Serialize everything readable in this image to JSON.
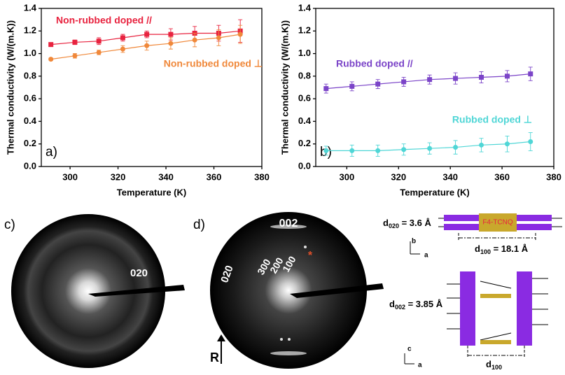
{
  "chart_data": [
    {
      "type": "scatter-line",
      "annotation": "a)",
      "xlabel": "Temperature (K)",
      "ylabel": "Thermal conductivity (W/(m.K))",
      "x": [
        292,
        302,
        312,
        322,
        332,
        342,
        352,
        362,
        371
      ],
      "xlim": [
        288,
        380
      ],
      "xticks": [
        300,
        320,
        340,
        360,
        380
      ],
      "ylim": [
        0,
        1.4
      ],
      "yticks": [
        {
          "value": 0,
          "label": "0.0"
        },
        0.2,
        0.4,
        0.6,
        0.8,
        {
          "value": 1,
          "label": "1.0"
        },
        1.2,
        1.4
      ],
      "series": [
        {
          "name": "Non-rubbed doped //",
          "color": "#e8233f",
          "marker": "square",
          "values": [
            1.08,
            1.1,
            1.11,
            1.14,
            1.17,
            1.17,
            1.18,
            1.18,
            1.2
          ],
          "errors": [
            0.01,
            0.02,
            0.03,
            0.03,
            0.03,
            0.05,
            0.06,
            0.07,
            0.1
          ]
        },
        {
          "name": "Non-rubbed doped ⊥",
          "color": "#f0883a",
          "marker": "circle",
          "values": [
            0.95,
            0.98,
            1.01,
            1.04,
            1.07,
            1.09,
            1.12,
            1.14,
            1.17
          ],
          "errors": [
            0.01,
            0.02,
            0.02,
            0.03,
            0.04,
            0.05,
            0.06,
            0.07,
            0.08
          ]
        }
      ]
    },
    {
      "type": "scatter-line",
      "annotation": "b)",
      "xlabel": "Temperature (K)",
      "ylabel": "Thermal conductivity (W/(m.K))",
      "x": [
        292,
        302,
        312,
        322,
        332,
        342,
        352,
        362,
        371
      ],
      "xlim": [
        288,
        380
      ],
      "xticks": [
        300,
        320,
        340,
        360,
        380
      ],
      "ylim": [
        0,
        1.4
      ],
      "yticks": [
        {
          "value": 0,
          "label": "0.0"
        },
        0.2,
        0.4,
        0.6,
        0.8,
        {
          "value": 1,
          "label": "1.0"
        },
        1.2,
        1.4
      ],
      "series": [
        {
          "name": "Rubbed doped //",
          "color": "#7b44c8",
          "marker": "square",
          "values": [
            0.69,
            0.71,
            0.73,
            0.75,
            0.77,
            0.78,
            0.79,
            0.8,
            0.82
          ],
          "errors": [
            0.04,
            0.04,
            0.04,
            0.04,
            0.04,
            0.05,
            0.05,
            0.05,
            0.06
          ]
        },
        {
          "name": "Rubbed doped ⊥",
          "color": "#4fd6d6",
          "marker": "circle",
          "values": [
            0.14,
            0.14,
            0.14,
            0.15,
            0.16,
            0.17,
            0.19,
            0.2,
            0.22
          ],
          "errors": [
            0.04,
            0.05,
            0.05,
            0.05,
            0.05,
            0.06,
            0.06,
            0.07,
            0.08
          ]
        }
      ]
    }
  ],
  "panels": {
    "c": {
      "label": "c)",
      "ring": "020"
    },
    "d": {
      "label": "d)",
      "top": "002",
      "side": "020",
      "orders": [
        "300",
        "200",
        "100"
      ],
      "star": "*",
      "arrow": "R"
    },
    "diagram": {
      "d020": {
        "sym": "d",
        "sub": "020",
        "rest": " = 3.6 Å"
      },
      "molecule": "F4-TCNQ",
      "axes1": [
        "b",
        "a"
      ],
      "d100": {
        "sym": "d",
        "sub": "100",
        "rest": " = 18.1 Å"
      },
      "d002": {
        "sym": "d",
        "sub": "002",
        "rest": " = 3.85 Å"
      },
      "axes2": [
        "c",
        "a"
      ],
      "d100b": {
        "sym": "d",
        "sub": "100"
      }
    }
  }
}
